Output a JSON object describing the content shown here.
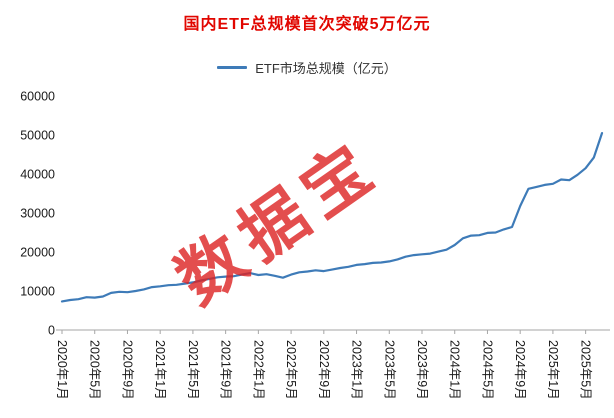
{
  "title": "国内ETF总规模首次突破5万亿元",
  "legend": {
    "label": "ETF市场总规模（亿元）"
  },
  "watermark": "数据宝",
  "colors": {
    "line": "#3e7bb8",
    "title": "#e10600",
    "watermark": "#dd2222",
    "axis": "#a6a6a6",
    "text": "#1a1a1a"
  },
  "chart_data": {
    "type": "line",
    "title": "国内ETF总规模首次突破5万亿元",
    "legend": [
      "ETF市场总规模（亿元）"
    ],
    "legend_position": "top",
    "grid": false,
    "ylabel": "",
    "xlabel": "",
    "ylim": [
      0,
      60000
    ],
    "y_ticks": [
      0,
      10000,
      20000,
      30000,
      40000,
      50000,
      60000
    ],
    "x_tick_labels": [
      "2020年1月",
      "2020年5月",
      "2020年9月",
      "2021年1月",
      "2021年5月",
      "2021年9月",
      "2022年1月",
      "2022年5月",
      "2022年9月",
      "2023年1月",
      "2023年5月",
      "2023年9月",
      "2024年1月",
      "2024年5月",
      "2024年9月",
      "2025年1月",
      "2025年5月"
    ],
    "x_tick_positions": [
      0,
      4,
      8,
      12,
      16,
      20,
      24,
      28,
      32,
      36,
      40,
      44,
      48,
      52,
      56,
      60,
      64
    ],
    "series": [
      {
        "name": "ETF市场总规模（亿元）",
        "values": [
          7340,
          7700,
          7900,
          8400,
          8300,
          8600,
          9500,
          9800,
          9700,
          10000,
          10400,
          11000,
          11200,
          11500,
          11600,
          11900,
          12200,
          12700,
          13100,
          13500,
          13700,
          13800,
          14200,
          14600,
          14100,
          14300,
          13900,
          13400,
          14200,
          14800,
          15000,
          15300,
          15100,
          15500,
          15900,
          16200,
          16700,
          16900,
          17200,
          17300,
          17600,
          18100,
          18800,
          19200,
          19400,
          19600,
          20100,
          20600,
          21800,
          23500,
          24200,
          24300,
          24900,
          25000,
          25800,
          26400,
          31800,
          36200,
          36700,
          37200,
          37500,
          38600,
          38400,
          39800,
          41500,
          44200,
          50500
        ]
      }
    ]
  }
}
